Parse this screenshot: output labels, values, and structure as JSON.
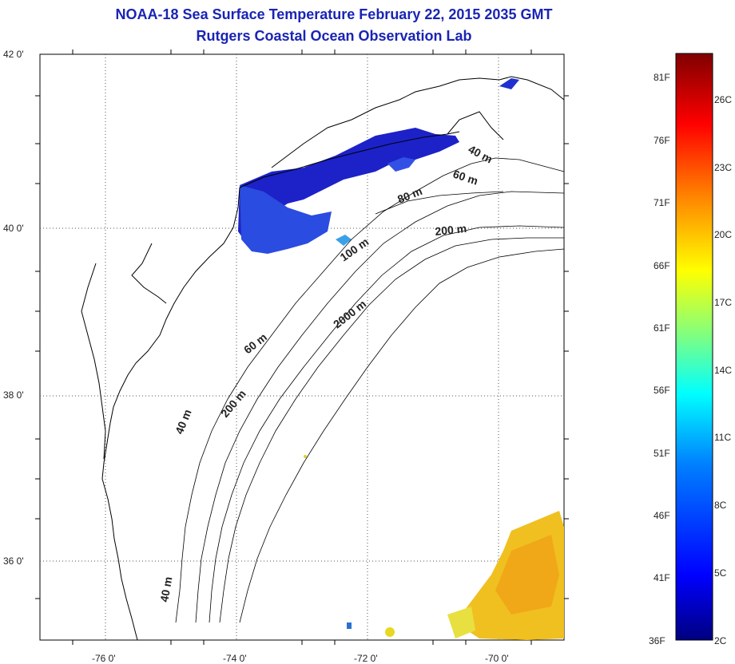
{
  "header": {
    "title": "NOAA-18 Sea Surface Temperature February 22, 2015 2035 GMT",
    "subtitle": "Rutgers Coastal Ocean Observation Lab"
  },
  "map": {
    "lat_labels": [
      "42 0'",
      "40 0'",
      "38 0'",
      "36 0'"
    ],
    "lon_labels": [
      "-76 0'",
      "-74 0'",
      "-72 0'",
      "-70 0'"
    ],
    "isobath_labels": [
      "40 m",
      "60 m",
      "80 m",
      "200 m",
      "100 m",
      "2000 m",
      "60 m",
      "200 m",
      "40 m",
      "40 m"
    ],
    "colors": {
      "land_line": "#000000",
      "cold_patch": "#1c1fd0",
      "warm_patch": "#f0c020"
    }
  },
  "colorbar": {
    "fahrenheit_labels": [
      "81F",
      "76F",
      "71F",
      "66F",
      "61F",
      "56F",
      "51F",
      "46F",
      "41F",
      "36F"
    ],
    "celsius_labels": [
      "26C",
      "23C",
      "20C",
      "17C",
      "14C",
      "11C",
      "8C",
      "5C",
      "2C"
    ],
    "colors": [
      "#00007f",
      "#0000ff",
      "#0080ff",
      "#00ffff",
      "#80ff80",
      "#ffff00",
      "#ff8000",
      "#ff0000",
      "#7f0000"
    ]
  }
}
